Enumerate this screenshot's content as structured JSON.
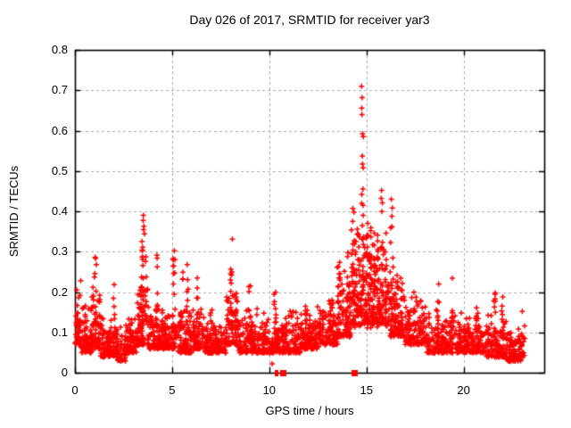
{
  "chart_data": {
    "type": "scatter",
    "title": "Day 026 of 2017, SRMTID for receiver yar3",
    "xlabel": "GPS time / hours",
    "ylabel": "SRMTID / TECUs",
    "xlim": [
      0,
      24.15
    ],
    "ylim": [
      0,
      0.8
    ],
    "xticks": [
      0,
      5,
      10,
      15,
      20
    ],
    "yticks": [
      0,
      0.1,
      0.2,
      0.3,
      0.4,
      0.5,
      0.6,
      0.7,
      0.8
    ],
    "ytick_labels": [
      "0",
      "0.1",
      "0.2",
      "0.3",
      "0.4",
      "0.5",
      "0.6",
      "0.7",
      "0.8"
    ],
    "grid": {
      "show": true,
      "style": "dashed",
      "color": "#aaaaaa"
    },
    "marker": {
      "shape": "plus",
      "color": "#ff0000",
      "size": 7
    },
    "frame_color": "#000000",
    "seed": 1337,
    "baseline_bins": [
      [
        0.02,
        0.3,
        40,
        0.07,
        0.21
      ],
      [
        0.3,
        0.9,
        80,
        0.05,
        0.17
      ],
      [
        0.9,
        1.3,
        55,
        0.06,
        0.22
      ],
      [
        1.3,
        2.2,
        110,
        0.04,
        0.14
      ],
      [
        2.2,
        2.6,
        45,
        0.03,
        0.12
      ],
      [
        2.6,
        3.2,
        75,
        0.05,
        0.15
      ],
      [
        3.2,
        3.8,
        85,
        0.07,
        0.26
      ],
      [
        3.8,
        4.4,
        75,
        0.06,
        0.16
      ],
      [
        4.4,
        5.3,
        110,
        0.06,
        0.18
      ],
      [
        5.3,
        6.1,
        100,
        0.05,
        0.17
      ],
      [
        6.1,
        6.7,
        75,
        0.06,
        0.16
      ],
      [
        6.7,
        7.8,
        130,
        0.05,
        0.13
      ],
      [
        7.8,
        8.4,
        75,
        0.07,
        0.22
      ],
      [
        8.4,
        9.6,
        140,
        0.05,
        0.16
      ],
      [
        9.6,
        10.6,
        115,
        0.05,
        0.15
      ],
      [
        10.6,
        11.6,
        115,
        0.05,
        0.16
      ],
      [
        11.6,
        12.6,
        115,
        0.06,
        0.17
      ],
      [
        12.6,
        13.5,
        105,
        0.07,
        0.19
      ],
      [
        13.5,
        14.2,
        90,
        0.09,
        0.28
      ],
      [
        14.2,
        15.3,
        150,
        0.12,
        0.38
      ],
      [
        15.3,
        16.2,
        125,
        0.12,
        0.35
      ],
      [
        16.2,
        17.0,
        100,
        0.09,
        0.27
      ],
      [
        17.0,
        18.1,
        120,
        0.07,
        0.19
      ],
      [
        18.1,
        19.1,
        110,
        0.05,
        0.16
      ],
      [
        19.1,
        20.1,
        110,
        0.05,
        0.15
      ],
      [
        20.1,
        21.1,
        110,
        0.05,
        0.14
      ],
      [
        21.1,
        22.2,
        120,
        0.04,
        0.15
      ],
      [
        22.2,
        23.15,
        110,
        0.03,
        0.12
      ]
    ],
    "spike_columns": [
      [
        0.15,
        0.21,
        7
      ],
      [
        0.9,
        0.24,
        6
      ],
      [
        1.05,
        0.285,
        8
      ],
      [
        2.0,
        0.215,
        5
      ],
      [
        3.5,
        0.385,
        20
      ],
      [
        3.65,
        0.3,
        9
      ],
      [
        4.2,
        0.285,
        9
      ],
      [
        5.1,
        0.325,
        10
      ],
      [
        5.5,
        0.255,
        7
      ],
      [
        5.8,
        0.265,
        8
      ],
      [
        6.3,
        0.235,
        7
      ],
      [
        7.0,
        0.16,
        4
      ],
      [
        8.05,
        0.325,
        13
      ],
      [
        8.3,
        0.265,
        8
      ],
      [
        9.0,
        0.215,
        6
      ],
      [
        10.3,
        0.215,
        7
      ],
      [
        11.9,
        0.205,
        6
      ],
      [
        12.6,
        0.19,
        5
      ],
      [
        13.2,
        0.215,
        6
      ],
      [
        13.6,
        0.3,
        9
      ],
      [
        14.0,
        0.33,
        11
      ],
      [
        14.35,
        0.395,
        13
      ],
      [
        14.6,
        0.41,
        15
      ],
      [
        14.8,
        0.44,
        17
      ],
      [
        15.0,
        0.4,
        13
      ],
      [
        15.2,
        0.375,
        11
      ],
      [
        15.55,
        0.41,
        11
      ],
      [
        15.8,
        0.44,
        13
      ],
      [
        16.0,
        0.375,
        10
      ],
      [
        16.3,
        0.42,
        10
      ],
      [
        16.6,
        0.31,
        8
      ],
      [
        17.5,
        0.22,
        6
      ],
      [
        18.7,
        0.215,
        6
      ],
      [
        19.4,
        0.23,
        7
      ],
      [
        20.7,
        0.17,
        5
      ],
      [
        21.6,
        0.195,
        6
      ],
      [
        22.0,
        0.185,
        5
      ]
    ],
    "peak_points": [
      [
        14.75,
        0.71
      ],
      [
        14.78,
        0.682
      ],
      [
        14.76,
        0.656
      ],
      [
        14.77,
        0.64
      ],
      [
        14.8,
        0.592
      ],
      [
        14.84,
        0.585
      ],
      [
        14.79,
        0.537
      ],
      [
        14.8,
        0.517
      ],
      [
        14.83,
        0.508
      ],
      [
        14.82,
        0.455
      ],
      [
        14.76,
        0.442
      ],
      [
        14.3,
        0.407
      ],
      [
        14.36,
        0.398
      ],
      [
        15.78,
        0.452
      ],
      [
        15.82,
        0.421
      ],
      [
        16.28,
        0.43
      ],
      [
        16.31,
        0.388
      ],
      [
        3.52,
        0.39
      ],
      [
        3.55,
        0.363
      ],
      [
        3.58,
        0.344
      ],
      [
        8.1,
        0.331
      ],
      [
        5.12,
        0.302
      ],
      [
        4.22,
        0.291
      ],
      [
        1.04,
        0.286
      ],
      [
        1.1,
        0.268
      ],
      [
        5.78,
        0.268
      ],
      [
        0.3,
        0.228
      ],
      [
        19.42,
        0.234
      ],
      [
        18.72,
        0.22
      ],
      [
        21.62,
        0.198
      ],
      [
        22.02,
        0.188
      ],
      [
        2.02,
        0.218
      ],
      [
        23.02,
        0.152
      ],
      [
        10.15,
        0.022
      ]
    ],
    "zero_markers": {
      "thin_ticks": [
        10.32,
        10.42
      ],
      "squares": [
        10.68,
        14.36
      ]
    },
    "data_end_hour": 23.1
  }
}
